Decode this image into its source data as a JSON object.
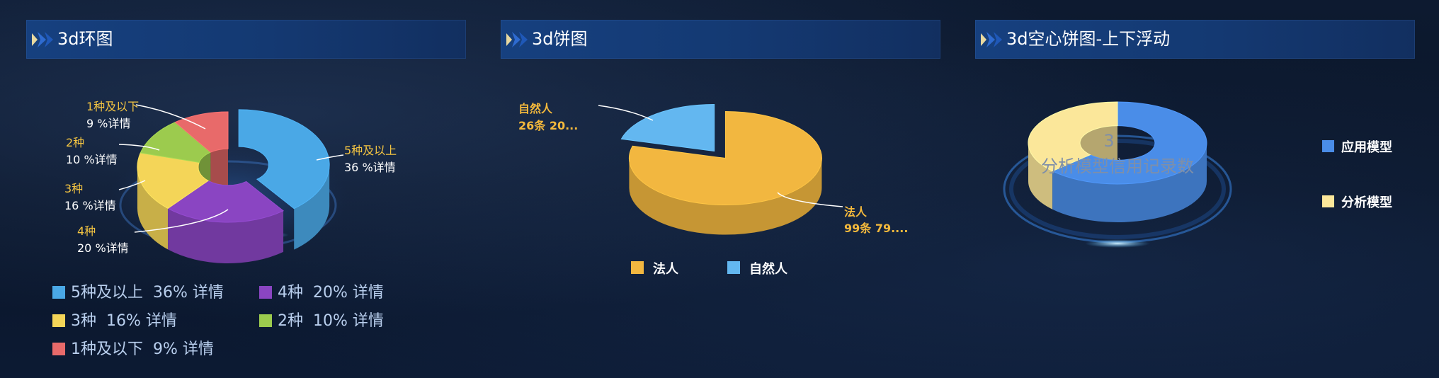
{
  "panels": {
    "ring": {
      "title": "3d环图"
    },
    "pie": {
      "title": "3d饼图"
    },
    "hollow": {
      "title": "3d空心饼图-上下浮动"
    }
  },
  "colors": {
    "blue": "#4aa8e6",
    "purple": "#8a45c2",
    "yellow": "#f4d558",
    "green": "#9ccb4e",
    "red": "#e86a6a",
    "orange": "#f2b740",
    "lightblue": "#63b7f0",
    "appblue": "#4a8de8",
    "paleyellow": "#fbe79a"
  },
  "chart_data": [
    {
      "type": "pie",
      "variant": "3d-ring",
      "title": "3d环图",
      "categories": [
        "5种及以上",
        "4种",
        "3种",
        "2种",
        "1种及以下"
      ],
      "values": [
        36,
        20,
        16,
        10,
        9
      ],
      "unit": "%",
      "callouts": [
        {
          "name": "5种及以上",
          "value_text": "36 %详情"
        },
        {
          "name": "4种",
          "value_text": "20 %详情"
        },
        {
          "name": "3种",
          "value_text": "16 %详情"
        },
        {
          "name": "2种",
          "value_text": "10 %详情"
        },
        {
          "name": "1种及以下",
          "value_text": "9 %详情"
        }
      ],
      "legend": [
        {
          "name": "5种及以上",
          "value": "36%",
          "link": "详情"
        },
        {
          "name": "4种",
          "value": "20%",
          "link": "详情"
        },
        {
          "name": "3种",
          "value": "16%",
          "link": "详情"
        },
        {
          "name": "2种",
          "value": "10%",
          "link": "详情"
        },
        {
          "name": "1种及以下",
          "value": "9%",
          "link": "详情"
        }
      ],
      "legend_position": "bottom-left"
    },
    {
      "type": "pie",
      "variant": "3d-pie",
      "title": "3d饼图",
      "categories": [
        "法人",
        "自然人"
      ],
      "values": [
        99,
        26
      ],
      "callouts": [
        {
          "name": "法人",
          "value_text": "99条 79...."
        },
        {
          "name": "自然人",
          "value_text": "26条 20..."
        }
      ],
      "legend": [
        "法人",
        "自然人"
      ],
      "legend_position": "bottom"
    },
    {
      "type": "pie",
      "variant": "3d-hollow",
      "title": "3d空心饼图-上下浮动",
      "categories": [
        "应用模型",
        "分析模型"
      ],
      "values": [
        63,
        37
      ],
      "center_value": "3",
      "center_label": "分析模型信用记录数",
      "legend": [
        "应用模型",
        "分析模型"
      ],
      "legend_position": "right"
    }
  ]
}
